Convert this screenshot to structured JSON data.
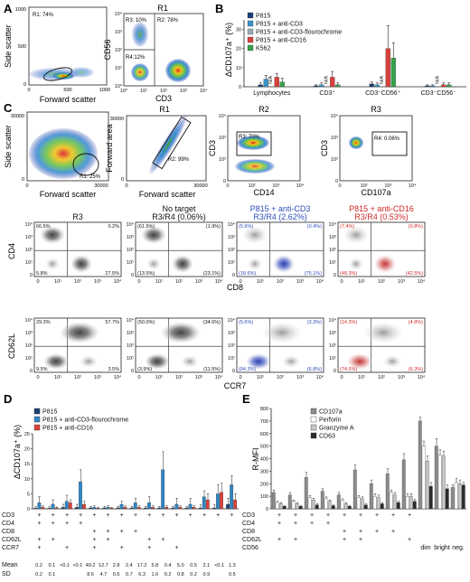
{
  "panels": {
    "A": {
      "letter": "A",
      "plot1": {
        "gate": "R1: 74%",
        "xlabel": "Forward scatter",
        "ylabel": "Side scatter",
        "xticks": [
          "0",
          "500",
          "1000"
        ],
        "yticks": [
          "0",
          "500",
          "1000"
        ]
      },
      "plot2": {
        "title": "R1",
        "gates": [
          "R3: 10%",
          "R2: 78%",
          "R4:12%"
        ],
        "xlabel": "CD3",
        "ylabel": "CD56",
        "xticks": [
          "10⁰",
          "10¹",
          "10²",
          "10³",
          "10⁴"
        ],
        "yticks": [
          "10⁰",
          "10¹",
          "10²",
          "10³",
          "10⁴"
        ]
      }
    },
    "B": {
      "letter": "B",
      "ylabel": "ΔCD107a⁺ (%)",
      "legend": [
        "P815",
        "P815 + anti-CD3",
        "P815 + anti-CD3-flourochrome",
        "P815 + anti-CD16",
        "K562"
      ],
      "colors": [
        "#1d3f77",
        "#3a92c9",
        "#9aa9b4",
        "#d9403a",
        "#36a149"
      ],
      "chart_data": {
        "type": "bar",
        "categories": [
          "Lymphocytes",
          "CD3⁺",
          "CD3⁻CD56⁺",
          "CD3⁻CD56⁻"
        ],
        "series": [
          {
            "name": "P815",
            "values": [
              1,
              0.5,
              1.5,
              0.5
            ],
            "err": [
              1,
              0.5,
              1,
              0.5
            ]
          },
          {
            "name": "P815 + anti-CD3",
            "values": [
              4,
              1,
              1,
              0.5
            ],
            "err": [
              2,
              1,
              1,
              0.5
            ]
          },
          {
            "name": "P815 + anti-CD3-flourochrome",
            "values": [
              null,
              null,
              null,
              null
            ],
            "err": [
              0,
              0,
              0,
              0
            ]
          },
          {
            "name": "P815 + anti-CD16",
            "values": [
              5,
              5,
              20,
              1
            ],
            "err": [
              2,
              3,
              12,
              1
            ]
          },
          {
            "name": "K562",
            "values": [
              2.5,
              1,
              15,
              1
            ],
            "err": [
              2,
              1,
              8,
              1
            ]
          }
        ],
        "na_label": "N/A",
        "yticks": [
          0,
          10,
          20,
          30
        ],
        "ylim": [
          0,
          35
        ]
      }
    },
    "C": {
      "letter": "C",
      "scatter1": {
        "gate": "R1: 25%",
        "xlabel": "Forward scatter",
        "ylabel": "Side scatter",
        "xticks": [
          "0",
          "30000"
        ],
        "yticks": [
          "0",
          "30000"
        ]
      },
      "scatter2": {
        "title": "R1",
        "gate": "R2: 99%",
        "xlabel": "Forward scatter",
        "ylabel": "Forward area",
        "xticks": [
          "0",
          "30000"
        ],
        "yticks": [
          "0",
          "30000"
        ]
      },
      "scatter3": {
        "title": "R2",
        "gate": "R3: 70%",
        "xlabel": "CD14",
        "ylabel": "CD3",
        "xticks": [
          "0",
          "10²",
          "10³",
          "10⁴"
        ],
        "yticks": [
          "0",
          "10²",
          "10³",
          "10⁴"
        ]
      },
      "scatter4": {
        "title": "R3",
        "gate": "R4: 0.06%",
        "xlabel": "CD107a",
        "ylabel": "CD3",
        "xticks": [
          "0",
          "10²",
          "10³",
          "10⁴"
        ],
        "yticks": [
          "0",
          "10²",
          "10³",
          "10⁴"
        ]
      },
      "row1": {
        "ylabel": "CD4",
        "xlabel": "CD8",
        "titles": [
          {
            "line1": "",
            "line2": "R3"
          },
          {
            "line1": "No target",
            "line2": "R3/R4 (0.06%)"
          },
          {
            "line1": "P815 + anti-CD3",
            "line2": "R3/R4 (2.62%)"
          },
          {
            "line1": "P815 + anti-CD16",
            "line2": "R3/R4 (0.53%)"
          }
        ],
        "quadrants": [
          [
            "66.5%",
            "0.2%",
            "5.8%",
            "27.5%"
          ],
          [
            "(61.5%)",
            "(1.9%)",
            "(13.5%)",
            "(23.1%)"
          ],
          [
            "(5.9%)",
            "(0.4%)",
            "(18.6%)",
            "(75.1%)"
          ],
          [
            "(7.4%)",
            "(0.8%)",
            "(49.3%)",
            "(42.5%)"
          ]
        ]
      },
      "row2": {
        "ylabel": "CD62L",
        "xlabel": "CCR7",
        "quadrants": [
          [
            "29.3%",
            "57.7%",
            "9.5%",
            "3.5%"
          ],
          [
            "(50.0%)",
            "(34.6%)",
            "(3.9%)",
            "(11.5%)"
          ],
          [
            "(5.6%)",
            "(3.3%)",
            "(84.3%)",
            "(6.8%)"
          ],
          [
            "(14.3%)",
            "(4.8%)",
            "(74.6%)",
            "(6.3%)"
          ]
        ]
      },
      "xticks": [
        "0",
        "10¹",
        "10²",
        "10³",
        "10⁴"
      ],
      "yticks": [
        "0",
        "10¹",
        "10²",
        "10³",
        "10⁴"
      ]
    },
    "D": {
      "letter": "D",
      "ylabel": "ΔCD107a⁺ (%)",
      "legend": [
        "P815",
        "P815 + anti-CD3-flourochrome",
        "P815 + anti-CD16"
      ],
      "colors": [
        "#1d3f77",
        "#2f86c5",
        "#d9403a"
      ],
      "yticks": [
        0,
        5,
        10,
        15,
        20,
        25
      ],
      "ylim": [
        0,
        25
      ],
      "chart_data": {
        "type": "bar",
        "groups": 15,
        "series": [
          {
            "name": "P815",
            "values": [
              0.2,
              0.2,
              0.5,
              0.5,
              0.3,
              0.3,
              0.3,
              0.3,
              0.3,
              0.3,
              0.3,
              0.3,
              0.3,
              0.3,
              1.5
            ],
            "err": [
              0.5,
              0.5,
              1,
              1,
              0.5,
              0.5,
              0.5,
              0.5,
              0.5,
              0.5,
              0.5,
              0.5,
              1,
              1,
              2
            ]
          },
          {
            "name": "P815 + anti-CD3-flourochrome",
            "values": [
              2,
              1.5,
              2.5,
              9,
              0.5,
              0.5,
              1.5,
              2,
              2,
              13,
              1.5,
              1.5,
              4,
              5,
              8
            ],
            "err": [
              2,
              1.5,
              2,
              4,
              0.5,
              0.5,
              1,
              1.5,
              2,
              6,
              2,
              2,
              2,
              3,
              3
            ]
          },
          {
            "name": "P815 + anti-CD16",
            "values": [
              0.5,
              0.3,
              2,
              1.5,
              0.2,
              0.2,
              0.5,
              0.5,
              0.5,
              0.5,
              0.5,
              0.5,
              3,
              5.5,
              3
            ],
            "err": [
              0.5,
              0.3,
              1,
              1,
              0.3,
              0.3,
              0.5,
              0.5,
              0.5,
              0.5,
              0.5,
              0.5,
              2,
              3,
              2
            ]
          }
        ]
      },
      "rows": [
        "CD3",
        "CD4",
        "CD8",
        "CD62L",
        "CCR7"
      ],
      "markers": [
        [
          "+",
          "+",
          "+",
          "+",
          "+",
          "+",
          "+",
          "+",
          "+",
          "+",
          "+",
          "+",
          "+",
          "+",
          "+"
        ],
        [
          "+",
          "+",
          "+",
          "+",
          "",
          "",
          "",
          "",
          "",
          "",
          "",
          "",
          "",
          "",
          ""
        ],
        [
          "",
          "",
          "",
          "",
          "+",
          "+",
          "+",
          "+",
          "",
          "",
          "",
          "",
          "",
          "",
          ""
        ],
        [
          "+",
          "+",
          "",
          "",
          "+",
          "+",
          "",
          "",
          "+",
          "+",
          "",
          "",
          "",
          "",
          ""
        ],
        [
          "+",
          "",
          "+",
          "",
          "+",
          "",
          "+",
          "",
          "+",
          "",
          "+",
          "",
          "",
          "",
          ""
        ]
      ],
      "mean_label": "Mean",
      "sd_label": "SD",
      "mean": [
        "0.2",
        "0.1",
        "<0.1",
        "<0.1",
        "49.2",
        "12.7",
        "2.8",
        "2.4",
        "17.2",
        "5.8",
        "0.4",
        "5.0",
        "0.5",
        "2.1",
        "<0.1",
        "1.3"
      ],
      "sd": [
        "0.2",
        "0.1",
        "",
        "",
        "8.6",
        "4.7",
        "0.5",
        "0.7",
        "6.3",
        "1.6",
        "0.2",
        "0.8",
        "0.2",
        "0.9",
        "",
        "0.5"
      ]
    },
    "E": {
      "letter": "E",
      "ylabel": "R-MFI",
      "legend": [
        "CD107a",
        "Perforin",
        "Granzyme A",
        "CD63"
      ],
      "colors": [
        "#8c8c8c",
        "#ffffff",
        "#c8c8c8",
        "#2b2b2b"
      ],
      "yticks": [
        0,
        100,
        200,
        300,
        400,
        500,
        600,
        700,
        800
      ],
      "ylim": [
        0,
        800
      ],
      "chart_data": {
        "type": "bar",
        "groups": 12,
        "series": [
          {
            "name": "CD107a",
            "values": [
              130,
              110,
              250,
              140,
              110,
              310,
              200,
              280,
              390,
              700,
              500,
              170
            ],
            "err": [
              20,
              20,
              40,
              20,
              20,
              40,
              30,
              40,
              50,
              30,
              60,
              20
            ]
          },
          {
            "name": "Perforin",
            "values": [
              50,
              60,
              90,
              80,
              70,
              90,
              100,
              130,
              100,
              500,
              430,
              210
            ],
            "err": [
              10,
              10,
              15,
              15,
              10,
              15,
              20,
              20,
              20,
              40,
              40,
              30
            ]
          },
          {
            "name": "Granzyme A",
            "values": [
              40,
              40,
              70,
              60,
              40,
              80,
              90,
              110,
              100,
              380,
              420,
              200
            ],
            "err": [
              10,
              10,
              15,
              10,
              10,
              15,
              20,
              20,
              20,
              40,
              40,
              30
            ]
          },
          {
            "name": "CD63",
            "values": [
              20,
              20,
              30,
              25,
              20,
              30,
              40,
              50,
              60,
              180,
              160,
              190
            ],
            "err": [
              5,
              5,
              10,
              5,
              5,
              10,
              10,
              10,
              15,
              30,
              30,
              20
            ]
          }
        ]
      },
      "rows": [
        "CD3",
        "CD4",
        "CD8",
        "CD62L",
        "CD56"
      ],
      "markers": [
        [
          "+",
          "+",
          "+",
          "+",
          "+",
          "+",
          "+",
          "+",
          "+",
          "",
          "",
          ""
        ],
        [
          "+",
          "+",
          "+",
          "+",
          "",
          "",
          "",
          "",
          "",
          "",
          "",
          ""
        ],
        [
          "",
          "",
          "",
          "",
          "+",
          "+",
          "+",
          "+",
          "",
          "",
          "",
          ""
        ],
        [
          "+",
          "+",
          "",
          "",
          "+",
          "+",
          "",
          "",
          "+",
          "",
          "",
          ""
        ]
      ],
      "cd56_labels": [
        "dim",
        "bright",
        "neg."
      ]
    }
  }
}
